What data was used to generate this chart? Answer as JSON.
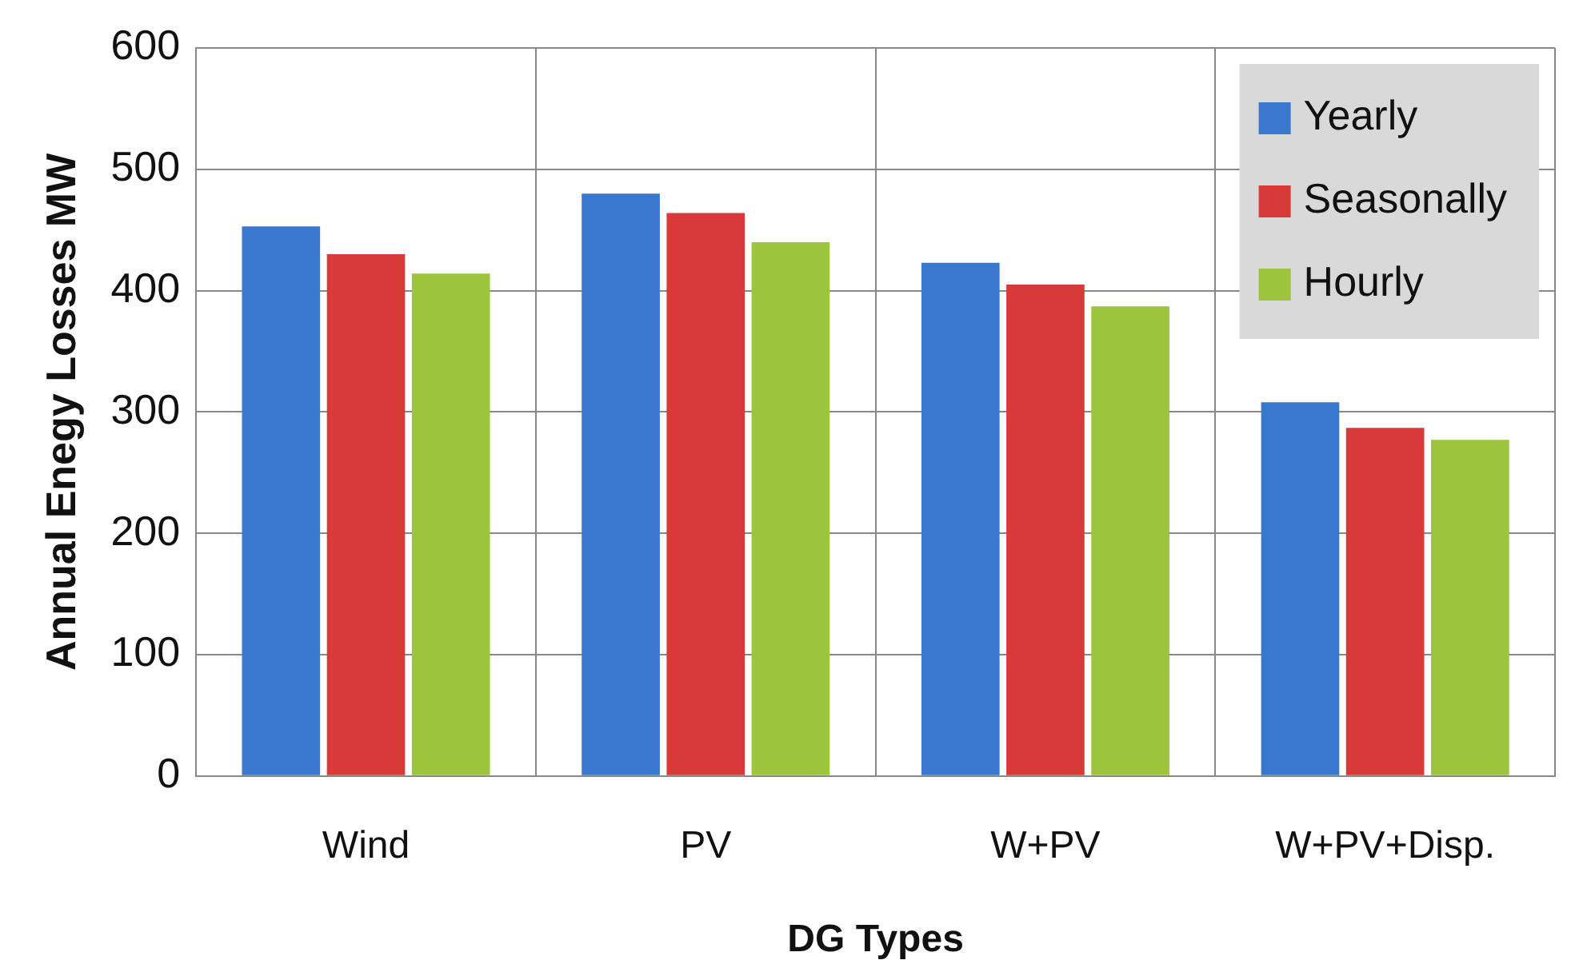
{
  "chart_data": {
    "type": "bar",
    "xlabel": "DG Types",
    "ylabel": "Annual Enegy Losses MW",
    "categories": [
      "Wind",
      "PV",
      "W+PV",
      "W+PV+Disp."
    ],
    "series": [
      {
        "name": "Yearly",
        "color": "#3a78d0",
        "values": [
          453,
          480,
          423,
          308
        ]
      },
      {
        "name": "Seasonally",
        "color": "#d83a3a",
        "values": [
          430,
          464,
          405,
          287
        ]
      },
      {
        "name": "Hourly",
        "color": "#9cc43c",
        "values": [
          414,
          440,
          387,
          277
        ]
      }
    ],
    "ylim": [
      0,
      600
    ],
    "yticks": [
      0,
      100,
      200,
      300,
      400,
      500,
      600
    ],
    "grid": true,
    "legend": "top right"
  }
}
